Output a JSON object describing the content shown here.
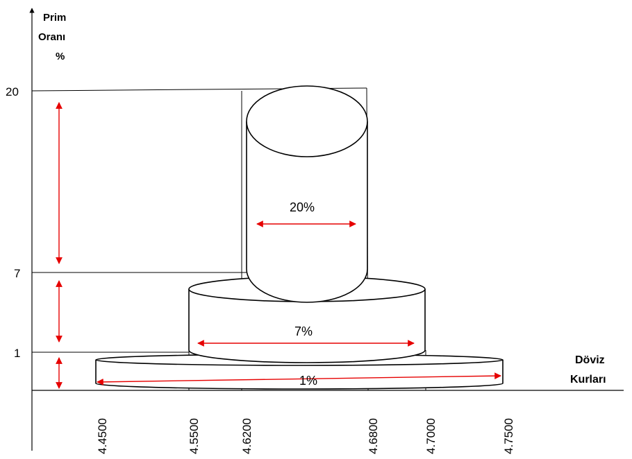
{
  "y_axis": {
    "title_lines": [
      "Prim",
      "Oranı",
      "%"
    ],
    "ticks": [
      "20",
      "7",
      "1"
    ]
  },
  "x_axis": {
    "title_lines": [
      "Döviz",
      "Kurları"
    ],
    "ticks": [
      "4.4500",
      "4.5500",
      "4.6200",
      "4.6800",
      "4.7000",
      "4.7500"
    ]
  },
  "tiers": [
    {
      "label": "20%"
    },
    {
      "label": "7%"
    },
    {
      "label": "1%"
    }
  ],
  "colors": {
    "arrow": "#e60000",
    "line": "#000000"
  }
}
